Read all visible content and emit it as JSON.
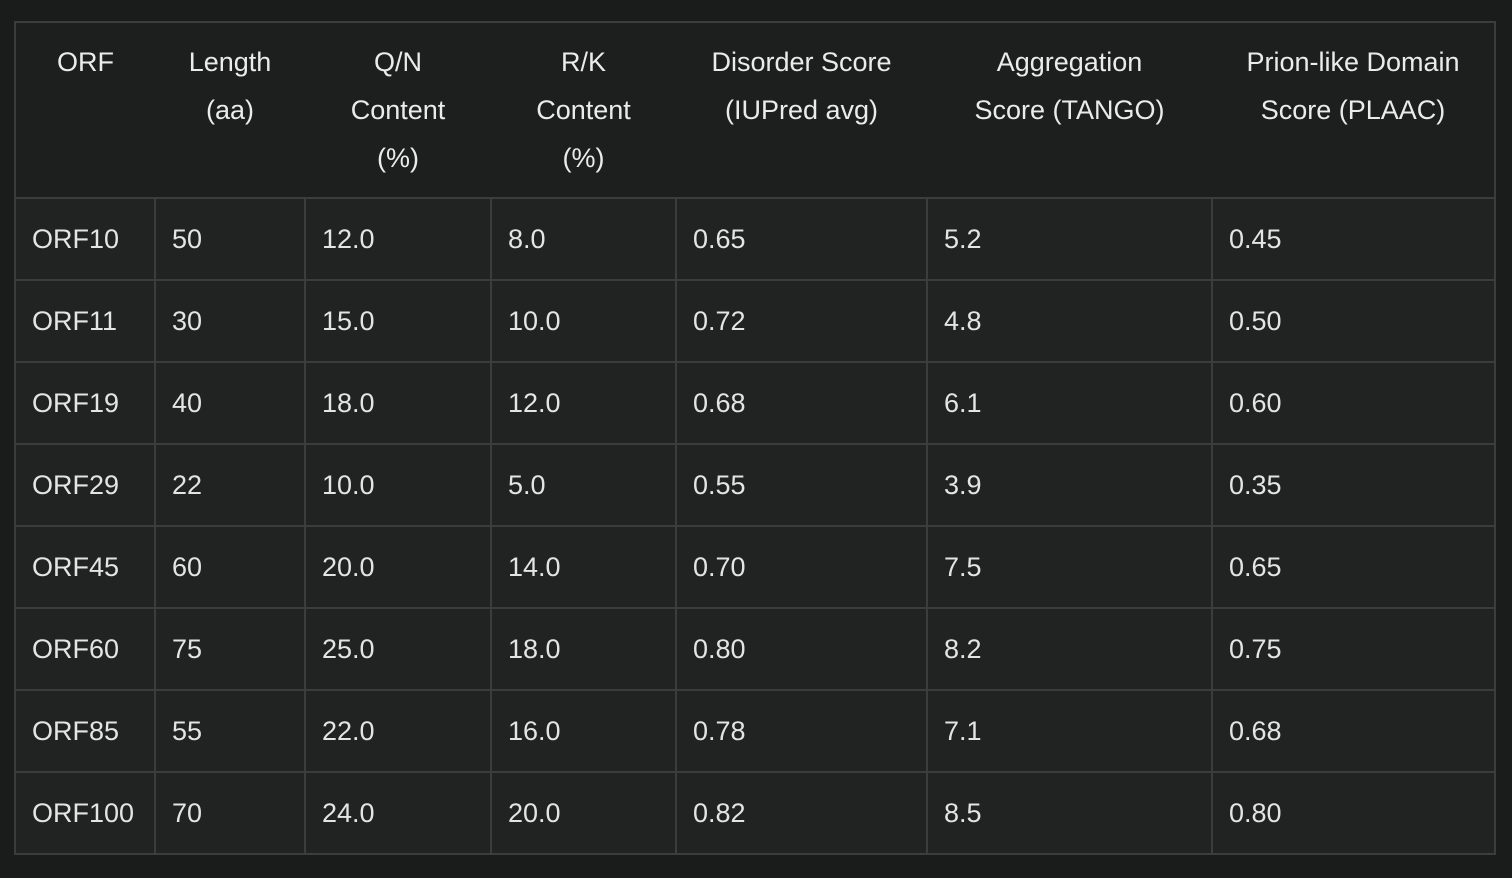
{
  "table": {
    "headers": [
      [
        "ORF"
      ],
      [
        "Length",
        "(aa)"
      ],
      [
        "Q/N",
        "Content",
        "(%)"
      ],
      [
        "R/K",
        "Content",
        "(%)"
      ],
      [
        "Disorder Score",
        "(IUPred avg)"
      ],
      [
        "Aggregation",
        "Score (TANGO)"
      ],
      [
        "Prion-like Domain",
        "Score (PLAAC)"
      ]
    ],
    "rows": [
      [
        "ORF10",
        "50",
        "12.0",
        "8.0",
        "0.65",
        "5.2",
        "0.45"
      ],
      [
        "ORF11",
        "30",
        "15.0",
        "10.0",
        "0.72",
        "4.8",
        "0.50"
      ],
      [
        "ORF19",
        "40",
        "18.0",
        "12.0",
        "0.68",
        "6.1",
        "0.60"
      ],
      [
        "ORF29",
        "22",
        "10.0",
        "5.0",
        "0.55",
        "3.9",
        "0.35"
      ],
      [
        "ORF45",
        "60",
        "20.0",
        "14.0",
        "0.70",
        "7.5",
        "0.65"
      ],
      [
        "ORF60",
        "75",
        "25.0",
        "18.0",
        "0.80",
        "8.2",
        "0.75"
      ],
      [
        "ORF85",
        "55",
        "22.0",
        "16.0",
        "0.78",
        "7.1",
        "0.68"
      ],
      [
        "ORF100",
        "70",
        "24.0",
        "20.0",
        "0.82",
        "8.5",
        "0.80"
      ]
    ]
  }
}
